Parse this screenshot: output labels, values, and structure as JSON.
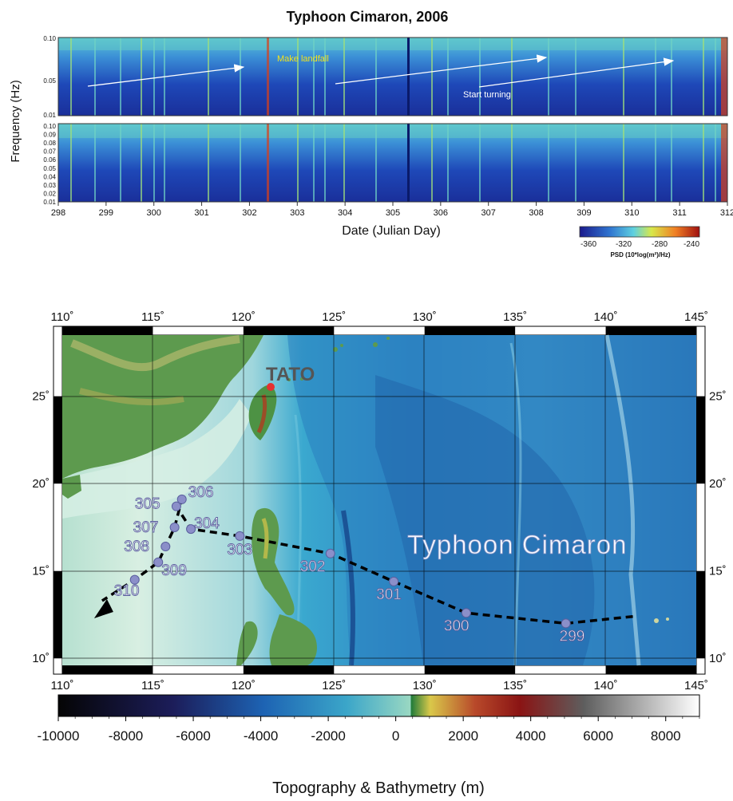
{
  "spectrogram": {
    "title": "Typhoon Cimaron, 2006",
    "ylabel": "Frequency (Hz)",
    "xlabel": "Date (Julian Day)",
    "x_ticks": [
      "298",
      "299",
      "300",
      "301",
      "302",
      "303",
      "304",
      "305",
      "306",
      "307",
      "308",
      "309",
      "310",
      "311",
      "312"
    ],
    "top_panel_y_ticks": [
      "0.10",
      "0.05",
      "0.01"
    ],
    "bottom_panel_y_ticks": [
      "0.10",
      "0.09",
      "0.08",
      "0.07",
      "0.06",
      "0.05",
      "0.04",
      "0.03",
      "0.02",
      "0.01"
    ],
    "annotations": {
      "landfall": "Make landfall",
      "turning": "Start turning"
    },
    "colorbar": {
      "ticks": [
        "-360",
        "-320",
        "-280",
        "-240"
      ],
      "label": "PSD (10*log(m²)/Hz)"
    }
  },
  "map": {
    "lon_ticks": [
      "110˚",
      "115˚",
      "120˚",
      "125˚",
      "130˚",
      "135˚",
      "140˚",
      "145˚"
    ],
    "lat_ticks": [
      "25˚",
      "20˚",
      "15˚",
      "10˚"
    ],
    "station_label": "TATO",
    "storm_label": "Typhoon Cimaron",
    "track_days": [
      {
        "day": "299",
        "lon": 137.8,
        "lat": 12.0
      },
      {
        "day": "300",
        "lon": 132.3,
        "lat": 12.6
      },
      {
        "day": "301",
        "lon": 128.3,
        "lat": 14.4
      },
      {
        "day": "302",
        "lon": 124.8,
        "lat": 16.0
      },
      {
        "day": "303",
        "lon": 119.8,
        "lat": 17.0
      },
      {
        "day": "304",
        "lon": 117.1,
        "lat": 17.4
      },
      {
        "day": "305",
        "lon": 116.3,
        "lat": 18.7
      },
      {
        "day": "306",
        "lon": 116.6,
        "lat": 19.1
      },
      {
        "day": "307",
        "lon": 116.2,
        "lat": 17.5
      },
      {
        "day": "308",
        "lon": 115.7,
        "lat": 16.4
      },
      {
        "day": "309",
        "lon": 115.3,
        "lat": 15.5
      },
      {
        "day": "310",
        "lon": 114.0,
        "lat": 14.5
      }
    ],
    "colorbar": {
      "ticks": [
        "-10000",
        "-8000",
        "-6000",
        "-4000",
        "-2000",
        "0",
        "2000",
        "4000",
        "6000",
        "8000"
      ],
      "label": "Topography & Bathymetry (m)"
    }
  },
  "colors": {
    "track": "#000000",
    "marker": "#8b8fc9",
    "label": "#ffffff",
    "station": "#e53030"
  }
}
